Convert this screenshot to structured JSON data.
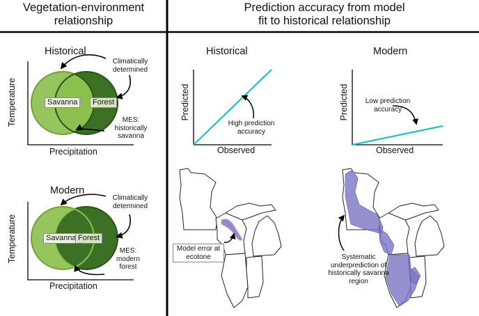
{
  "left_header": {
    "line1": "Vegetation-environment",
    "line2": "relationship"
  },
  "right_header": {
    "line1": "Prediction accuracy from model",
    "line2": "fit to historical relationship"
  },
  "venn_historical": {
    "title": "Historical",
    "savanna": "Savanna",
    "forest": "Forest",
    "annot1": [
      "Climatically",
      "determined"
    ],
    "annot2": [
      "MES:",
      "historically",
      "savanna"
    ],
    "ylabel": "Temperature",
    "xlabel": "Precipitation"
  },
  "venn_modern": {
    "title": "Modern",
    "savanna": "Savanna",
    "forest": "Forest",
    "annot1": [
      "Climatically",
      "determined"
    ],
    "annot2": [
      "MES:",
      "modern",
      "forest"
    ],
    "ylabel": "Temperature",
    "xlabel": "Precipitation"
  },
  "plot_historical": {
    "title": "Historical",
    "ylabel": "Predicted",
    "xlabel": "Observed",
    "annot": [
      "High prediction",
      "accuracy"
    ]
  },
  "plot_modern": {
    "title": "Modern",
    "ylabel": "Predicted",
    "xlabel": "Observed",
    "annot": [
      "Low prediction",
      "accuracy"
    ]
  },
  "map_left": {
    "annot": [
      "Model error at",
      "ecotone"
    ]
  },
  "map_right": {
    "annot": [
      "Systematic",
      "underprediction of",
      "historically savanna",
      "region"
    ]
  },
  "colors": {
    "savanna": "#8cc04e",
    "savanna_dark": "#6ea235",
    "forest": "#3c7025",
    "forest_dark": "#2a5519",
    "line": "#1fc0c0",
    "error": "#7a76c4"
  },
  "chart_data": [
    {
      "type": "line",
      "title": "Historical",
      "xlabel": "Observed",
      "ylabel": "Predicted",
      "series": [
        {
          "x": [
            0,
            1
          ],
          "y": [
            0,
            1
          ]
        }
      ],
      "xlim": [
        0,
        1
      ],
      "ylim": [
        0,
        1
      ]
    },
    {
      "type": "line",
      "title": "Modern",
      "xlabel": "Observed",
      "ylabel": "Predicted",
      "series": [
        {
          "x": [
            0,
            1
          ],
          "y": [
            0,
            0.25
          ]
        }
      ],
      "xlim": [
        0,
        1
      ],
      "ylim": [
        0,
        1
      ]
    }
  ]
}
